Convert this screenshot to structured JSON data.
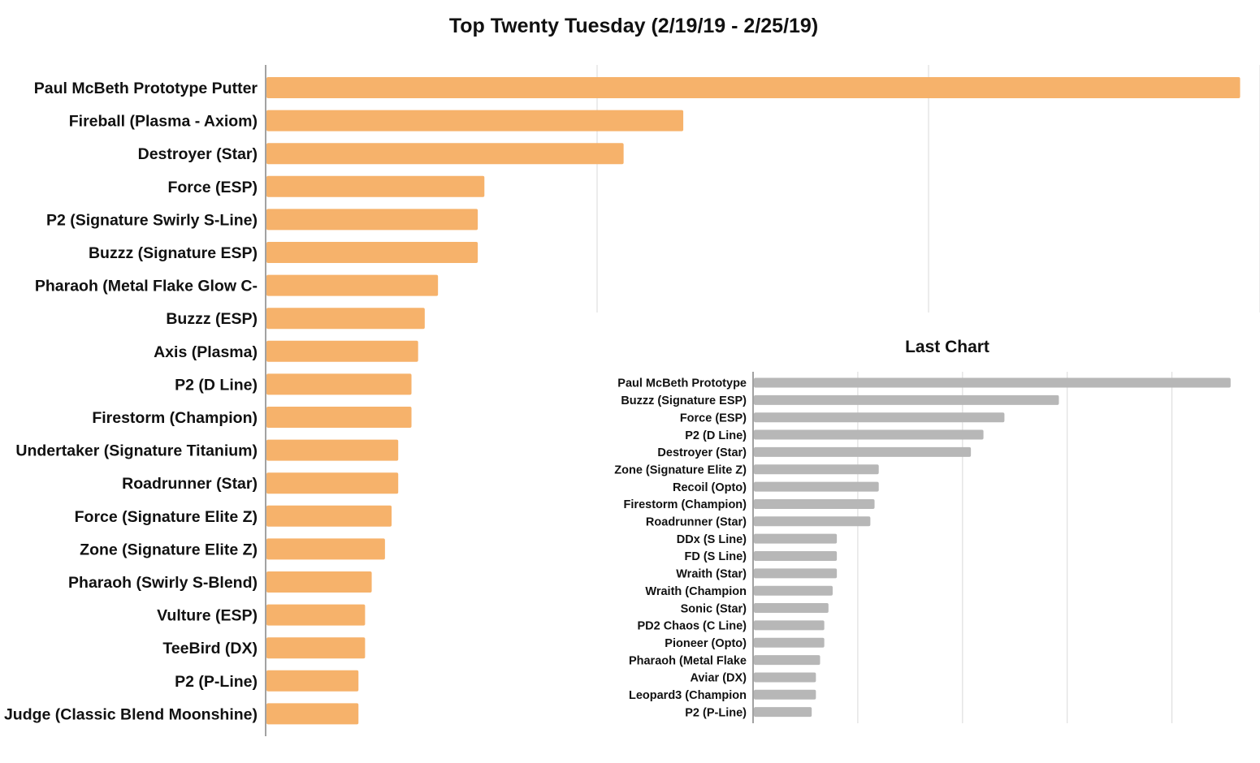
{
  "chart_data": [
    {
      "type": "bar",
      "orientation": "horizontal",
      "title": "Top Twenty Tuesday (2/19/19 - 2/25/19)",
      "xlabel": "",
      "ylabel": "",
      "categories": [
        "Paul McBeth Prototype Putter",
        "Fireball (Plasma - Axiom)",
        "Destroyer (Star)",
        "Force (ESP)",
        "P2 (Signature Swirly S-Line)",
        "Buzzz (Signature ESP)",
        "Pharaoh (Metal Flake Glow C-",
        "Buzzz (ESP)",
        "Axis (Plasma)",
        "P2 (D Line)",
        "Firestorm (Champion)",
        "Undertaker (Signature Titanium)",
        "Roadrunner (Star)",
        "Force (Signature Elite Z)",
        "Zone (Signature Elite Z)",
        "Pharaoh (Swirly S-Blend)",
        "Vulture (ESP)",
        "TeeBird (DX)",
        "P2 (P-Line)",
        "Judge (Classic Blend Moonshine)"
      ],
      "values": [
        147,
        63,
        54,
        33,
        32,
        32,
        26,
        24,
        23,
        22,
        22,
        20,
        20,
        19,
        18,
        16,
        15,
        15,
        14,
        14
      ],
      "xlim": [
        0,
        150
      ],
      "grid": true,
      "color": "#F6B26B"
    },
    {
      "type": "bar",
      "orientation": "horizontal",
      "title": "Last Chart",
      "xlabel": "",
      "ylabel": "",
      "categories": [
        "Paul McBeth Prototype",
        "Buzzz (Signature ESP)",
        "Force (ESP)",
        "P2 (D Line)",
        "Destroyer (Star)",
        "Zone (Signature Elite Z)",
        "Recoil (Opto)",
        "Firestorm (Champion)",
        "Roadrunner (Star)",
        "DDx (S Line)",
        "FD (S Line)",
        "Wraith (Star)",
        "Wraith (Champion",
        "Sonic (Star)",
        "PD2 Chaos (C Line)",
        "Pioneer (Opto)",
        "Pharaoh (Metal Flake",
        "Aviar (DX)",
        "Leopard3 (Champion",
        "P2 (P-Line)"
      ],
      "values": [
        114,
        73,
        60,
        55,
        52,
        30,
        30,
        29,
        28,
        20,
        20,
        20,
        19,
        18,
        17,
        17,
        16,
        15,
        15,
        14
      ],
      "xlim": [
        0,
        115
      ],
      "grid": true,
      "color": "#B7B7B7"
    }
  ]
}
